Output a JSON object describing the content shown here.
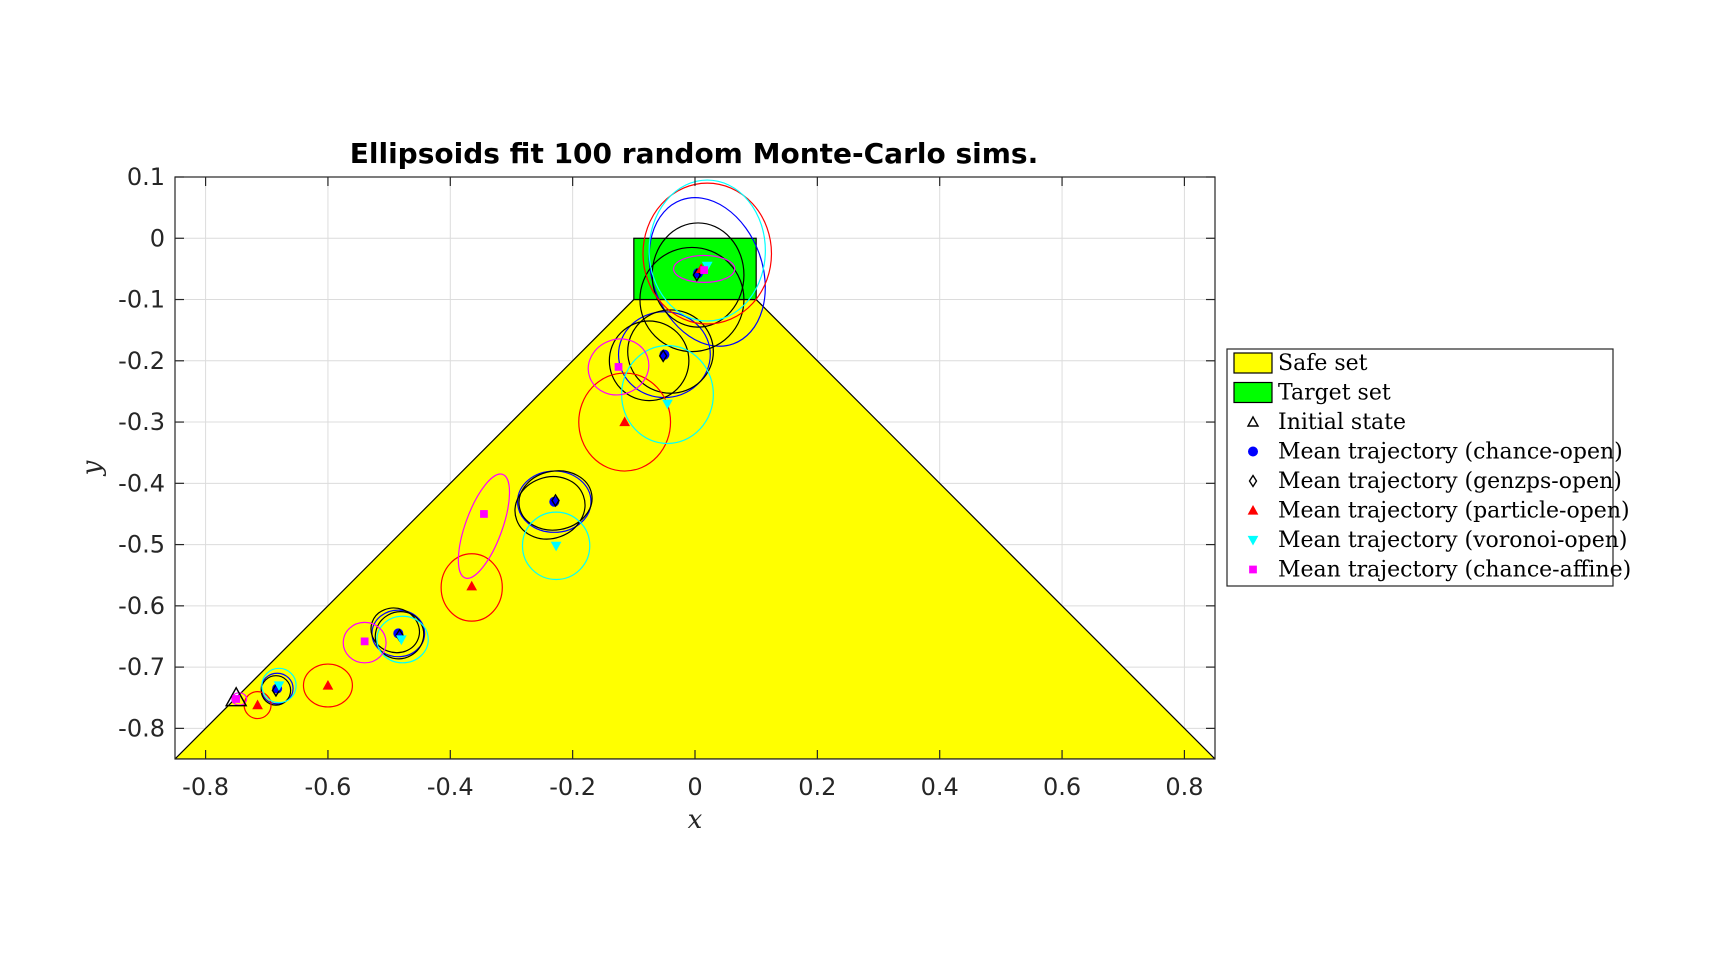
{
  "chart_data": {
    "type": "scatter",
    "title": "Ellipsoids fit 100 random Monte-Carlo sims.",
    "xlabel": "x",
    "ylabel": "y",
    "xlim": [
      -0.85,
      0.85
    ],
    "ylim": [
      -0.85,
      0.1
    ],
    "xticks": [
      "-0.8",
      "-0.6",
      "-0.4",
      "-0.2",
      "0",
      "0.2",
      "0.4",
      "0.6",
      "0.8"
    ],
    "xtick_values": [
      -0.8,
      -0.6,
      -0.4,
      -0.2,
      0,
      0.2,
      0.4,
      0.6,
      0.8
    ],
    "yticks": [
      "0.1",
      "0",
      "-0.1",
      "-0.2",
      "-0.3",
      "-0.4",
      "-0.5",
      "-0.6",
      "-0.7",
      "-0.8"
    ],
    "ytick_values": [
      0.1,
      0,
      -0.1,
      -0.2,
      -0.3,
      -0.4,
      -0.5,
      -0.6,
      -0.7,
      -0.8
    ],
    "grid": true,
    "legend_position": "outside-right",
    "safe_set": {
      "name": "Safe set",
      "color": "#ffff00",
      "vertices": [
        [
          -0.85,
          -0.85
        ],
        [
          -0.1,
          -0.1
        ],
        [
          0.1,
          -0.1
        ],
        [
          0.85,
          -0.85
        ]
      ]
    },
    "target_set": {
      "name": "Target set",
      "color": "#00ff00",
      "x": [
        -0.1,
        0.1
      ],
      "y": [
        -0.1,
        0
      ]
    },
    "initial_state": {
      "name": "Initial state",
      "marker": "triangle-open",
      "color": "#000000",
      "x": -0.75,
      "y": -0.75
    },
    "series": [
      {
        "name": "Mean trajectory (chance-open)",
        "marker": "circle-filled",
        "color": "#0000ff",
        "points": [
          [
            -0.683,
            -0.735
          ],
          [
            -0.485,
            -0.645
          ],
          [
            -0.23,
            -0.43
          ],
          [
            -0.05,
            -0.19
          ],
          [
            0.005,
            -0.057
          ]
        ],
        "ellipses": [
          [
            -0.683,
            -0.735,
            0.026,
            0.025,
            0
          ],
          [
            -0.485,
            -0.645,
            0.043,
            0.038,
            0
          ],
          [
            -0.23,
            -0.43,
            0.06,
            0.05,
            0
          ],
          [
            -0.05,
            -0.19,
            0.075,
            0.07,
            0
          ],
          [
            0.02,
            -0.055,
            0.125,
            0.09,
            -70
          ]
        ]
      },
      {
        "name": "Mean trajectory (genzps-open)",
        "marker": "diamond-open",
        "color": "#000000",
        "points": [
          [
            -0.685,
            -0.738
          ],
          [
            -0.483,
            -0.648
          ],
          [
            -0.228,
            -0.428
          ],
          [
            -0.052,
            -0.192
          ],
          [
            0.003,
            -0.06
          ]
        ],
        "ellipses": [
          [
            -0.685,
            -0.738,
            0.024,
            0.024,
            0
          ],
          [
            -0.483,
            -0.648,
            0.04,
            0.038,
            30
          ],
          [
            -0.228,
            -0.428,
            0.06,
            0.048,
            10
          ],
          [
            -0.075,
            -0.2,
            0.065,
            0.065,
            0
          ],
          [
            -0.04,
            -0.185,
            0.07,
            0.068,
            0
          ],
          [
            0.005,
            -0.06,
            0.075,
            0.085,
            0
          ],
          [
            -0.005,
            -0.1,
            0.085,
            0.085,
            0
          ],
          [
            -0.237,
            -0.44,
            0.058,
            0.05,
            20
          ],
          [
            -0.49,
            -0.64,
            0.04,
            0.036,
            -20
          ]
        ]
      },
      {
        "name": "Mean trajectory (particle-open)",
        "marker": "triangle-filled",
        "color": "#ff0000",
        "points": [
          [
            -0.715,
            -0.762
          ],
          [
            -0.6,
            -0.73
          ],
          [
            -0.365,
            -0.568
          ],
          [
            -0.115,
            -0.3
          ],
          [
            0.01,
            -0.05
          ]
        ],
        "ellipses": [
          [
            -0.715,
            -0.762,
            0.022,
            0.022,
            0
          ],
          [
            -0.6,
            -0.73,
            0.04,
            0.035,
            0
          ],
          [
            -0.365,
            -0.57,
            0.05,
            0.055,
            0
          ],
          [
            -0.115,
            -0.3,
            0.075,
            0.08,
            0
          ],
          [
            0.02,
            -0.025,
            0.105,
            0.115,
            0
          ]
        ]
      },
      {
        "name": "Mean trajectory (voronoi-open)",
        "marker": "triangle-down-filled",
        "color": "#00ffff",
        "points": [
          [
            -0.68,
            -0.73
          ],
          [
            -0.48,
            -0.655
          ],
          [
            -0.227,
            -0.502
          ],
          [
            -0.045,
            -0.27
          ],
          [
            0.02,
            -0.045
          ]
        ],
        "ellipses": [
          [
            -0.68,
            -0.73,
            0.028,
            0.028,
            0
          ],
          [
            -0.478,
            -0.655,
            0.042,
            0.038,
            0
          ],
          [
            -0.227,
            -0.502,
            0.055,
            0.055,
            0
          ],
          [
            -0.045,
            -0.255,
            0.075,
            0.08,
            0
          ],
          [
            0.02,
            -0.02,
            0.095,
            0.115,
            0
          ]
        ]
      },
      {
        "name": "Mean trajectory (chance-affine)",
        "marker": "square-filled",
        "color": "#ff00ff",
        "points": [
          [
            -0.75,
            -0.752
          ],
          [
            -0.54,
            -0.658
          ],
          [
            -0.345,
            -0.45
          ],
          [
            -0.125,
            -0.21
          ],
          [
            0.015,
            -0.052
          ]
        ],
        "ellipses": [
          [
            -0.745,
            -0.752,
            0.012,
            0.01,
            0
          ],
          [
            -0.54,
            -0.66,
            0.035,
            0.033,
            0
          ],
          [
            -0.345,
            -0.47,
            0.09,
            0.03,
            70
          ],
          [
            -0.125,
            -0.21,
            0.05,
            0.045,
            20
          ],
          [
            0.015,
            -0.05,
            0.05,
            0.022,
            0
          ]
        ]
      }
    ]
  }
}
